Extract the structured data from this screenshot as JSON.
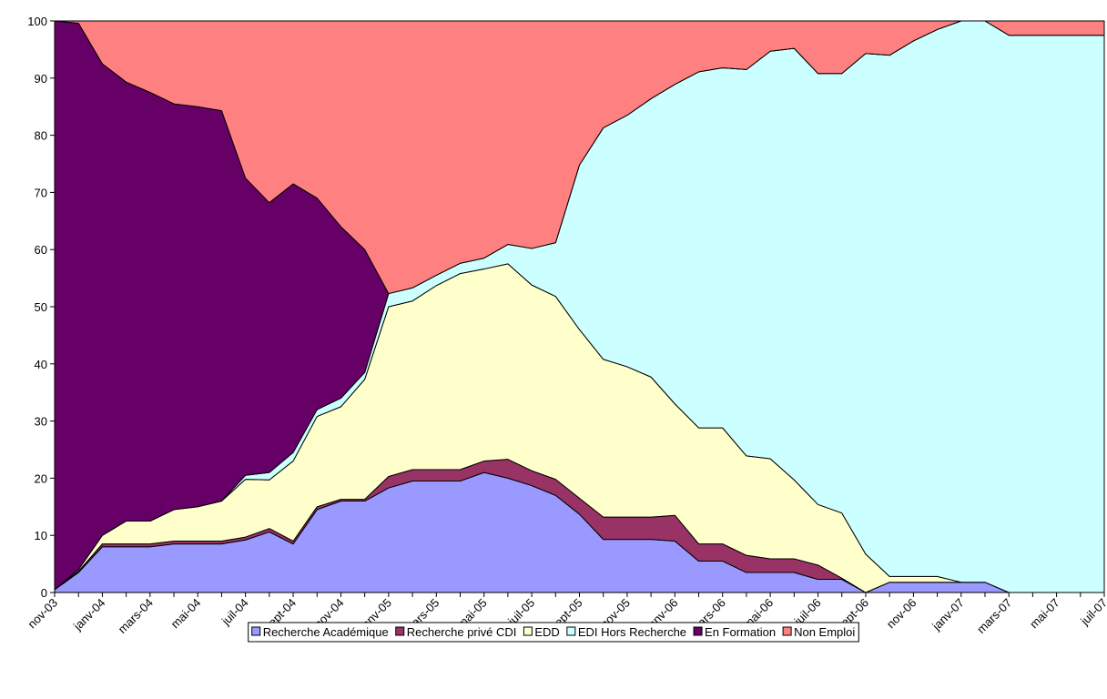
{
  "chart_data": {
    "type": "stacked_area",
    "categories": [
      "nov-03",
      null,
      "janv-04",
      null,
      "mars-04",
      null,
      "mai-04",
      null,
      "juil-04",
      null,
      "sept-04",
      null,
      "nov-04",
      null,
      "janv-05",
      null,
      "mars-05",
      null,
      "mai-05",
      null,
      "juil-05",
      null,
      "sept-05",
      null,
      "nov-05",
      null,
      "janv-06",
      null,
      "mars-06",
      null,
      "mai-06",
      null,
      "juil-06",
      null,
      "sept-06",
      null,
      "nov-06",
      null,
      "janv-07",
      null,
      "mars-07",
      null,
      "mai-07",
      null,
      "juil-07"
    ],
    "series": [
      {
        "name": "Recherche Académique",
        "color": "#9999ff",
        "values": [
          0.5,
          3.5,
          8,
          8,
          8,
          8.5,
          8.5,
          8.5,
          9.2,
          10.6,
          8.5,
          14.5,
          16,
          16,
          18.3,
          19.5,
          19.5,
          19.5,
          21,
          20,
          18.7,
          17,
          13.7,
          9.3,
          9.3,
          9.3,
          9,
          5.5,
          5.5,
          3.5,
          3.5,
          3.5,
          2.3,
          2.3,
          0,
          1.8,
          1.8,
          1.8,
          1.8,
          1.8,
          0,
          0,
          0,
          0,
          0
        ]
      },
      {
        "name": "Recherche privé CDI",
        "color": "#993366",
        "values": [
          0,
          0.2,
          0.5,
          0.5,
          0.5,
          0.5,
          0.5,
          0.5,
          0.5,
          0.6,
          0.5,
          0.5,
          0.3,
          0.3,
          2,
          2,
          2,
          2,
          2,
          3.3,
          2.6,
          2.8,
          2.8,
          3.9,
          3.9,
          3.9,
          4.5,
          3,
          3,
          3,
          2.4,
          2.4,
          2.5,
          0.2,
          0,
          0,
          0,
          0,
          0,
          0,
          0,
          0,
          0,
          0,
          0
        ]
      },
      {
        "name": "EDD",
        "color": "#ffffcc",
        "values": [
          0,
          0.3,
          1.5,
          4,
          4,
          5.5,
          6,
          7,
          10.1,
          8.5,
          14,
          15.8,
          16.2,
          21,
          29.7,
          29.5,
          32.2,
          34.3,
          33.6,
          34.2,
          32.5,
          32,
          29.5,
          27.6,
          26.3,
          24.5,
          19.5,
          20.3,
          20.3,
          17.4,
          17.5,
          13.8,
          10.6,
          11.4,
          6.7,
          1,
          1,
          1,
          0,
          0,
          0,
          0,
          0,
          0,
          0
        ]
      },
      {
        "name": "EDI Hors Recherche",
        "color": "#ccffff",
        "values": [
          0,
          0,
          0,
          0,
          0,
          0,
          0,
          0,
          0.7,
          1.3,
          1.5,
          1.2,
          1.5,
          1.2,
          2.3,
          2.3,
          1.8,
          1.8,
          1.9,
          3.4,
          6.4,
          9.4,
          28.8,
          40.5,
          44,
          48.7,
          55.9,
          62.3,
          63,
          67.6,
          71.3,
          75.5,
          75.4,
          76.9,
          87.6,
          91.2,
          93.7,
          95.7,
          98.2,
          98.2,
          97.5,
          97.5,
          97.5,
          97.5,
          97.5
        ]
      },
      {
        "name": "En Formation",
        "color": "#660066",
        "values": [
          99.5,
          95.6,
          82.5,
          76.8,
          75,
          71,
          70,
          68.3,
          52,
          47.2,
          47,
          37,
          30,
          21.5,
          0,
          0,
          0,
          0,
          0,
          0,
          0,
          0,
          0,
          0,
          0,
          0,
          0,
          0,
          0,
          0,
          0,
          0,
          0,
          0,
          0,
          0,
          0,
          0,
          0,
          0,
          0,
          0,
          0,
          0,
          0
        ]
      },
      {
        "name": "Non Emploi",
        "color": "#ff8080",
        "values": [
          0,
          0.4,
          7.5,
          10.7,
          12.5,
          14.5,
          15,
          15.7,
          27.5,
          31.8,
          28.5,
          31,
          36,
          40,
          47.7,
          46.7,
          44.5,
          42.4,
          41.5,
          39.1,
          39.8,
          38.8,
          25.2,
          18.7,
          16.5,
          13.6,
          11.1,
          8.9,
          8.2,
          8.5,
          5.3,
          4.8,
          9.2,
          9.2,
          5.7,
          6,
          3.5,
          1.5,
          0,
          0,
          2.5,
          2.5,
          2.5,
          2.5,
          2.5
        ]
      }
    ],
    "ylim": [
      0,
      100
    ],
    "yticks": [
      0,
      10,
      20,
      30,
      40,
      50,
      60,
      70,
      80,
      90,
      100
    ],
    "legend": "bottom"
  }
}
